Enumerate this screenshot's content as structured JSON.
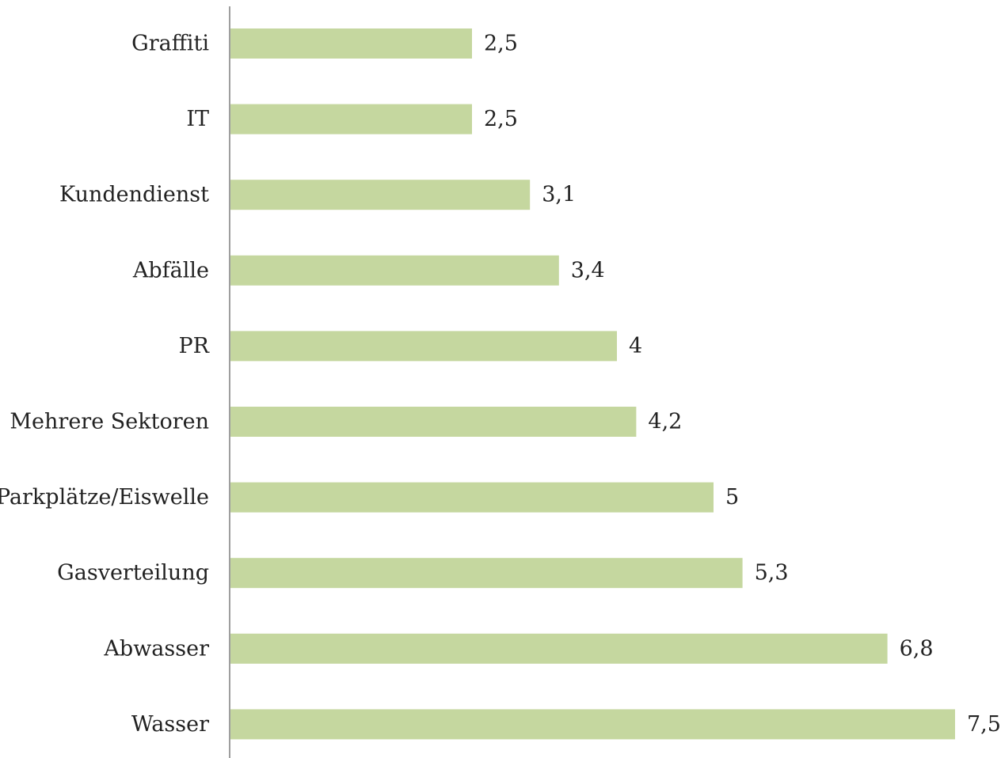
{
  "chart_data": {
    "type": "bar",
    "orientation": "horizontal",
    "categories": [
      "Graffiti",
      "IT",
      "Kundendienst",
      "Abfälle",
      "PR",
      "Mehrere Sektoren",
      "Parkplätze/Eiswelle",
      "Gasverteilung",
      "Abwasser",
      "Wasser"
    ],
    "values": [
      2.5,
      2.5,
      3.1,
      3.4,
      4,
      4.2,
      5,
      5.3,
      6.8,
      7.5
    ],
    "value_labels": [
      "2,5",
      "2,5",
      "3,1",
      "3,4",
      "4",
      "4,2",
      "5",
      "5,3",
      "6,8",
      "7,5"
    ],
    "title": "",
    "xlabel": "",
    "ylabel": "",
    "xlim": [
      0,
      7.5
    ],
    "grid": false,
    "legend": "none",
    "bar_color": "#c5d79f",
    "axis_color": "#7f7f7f"
  }
}
